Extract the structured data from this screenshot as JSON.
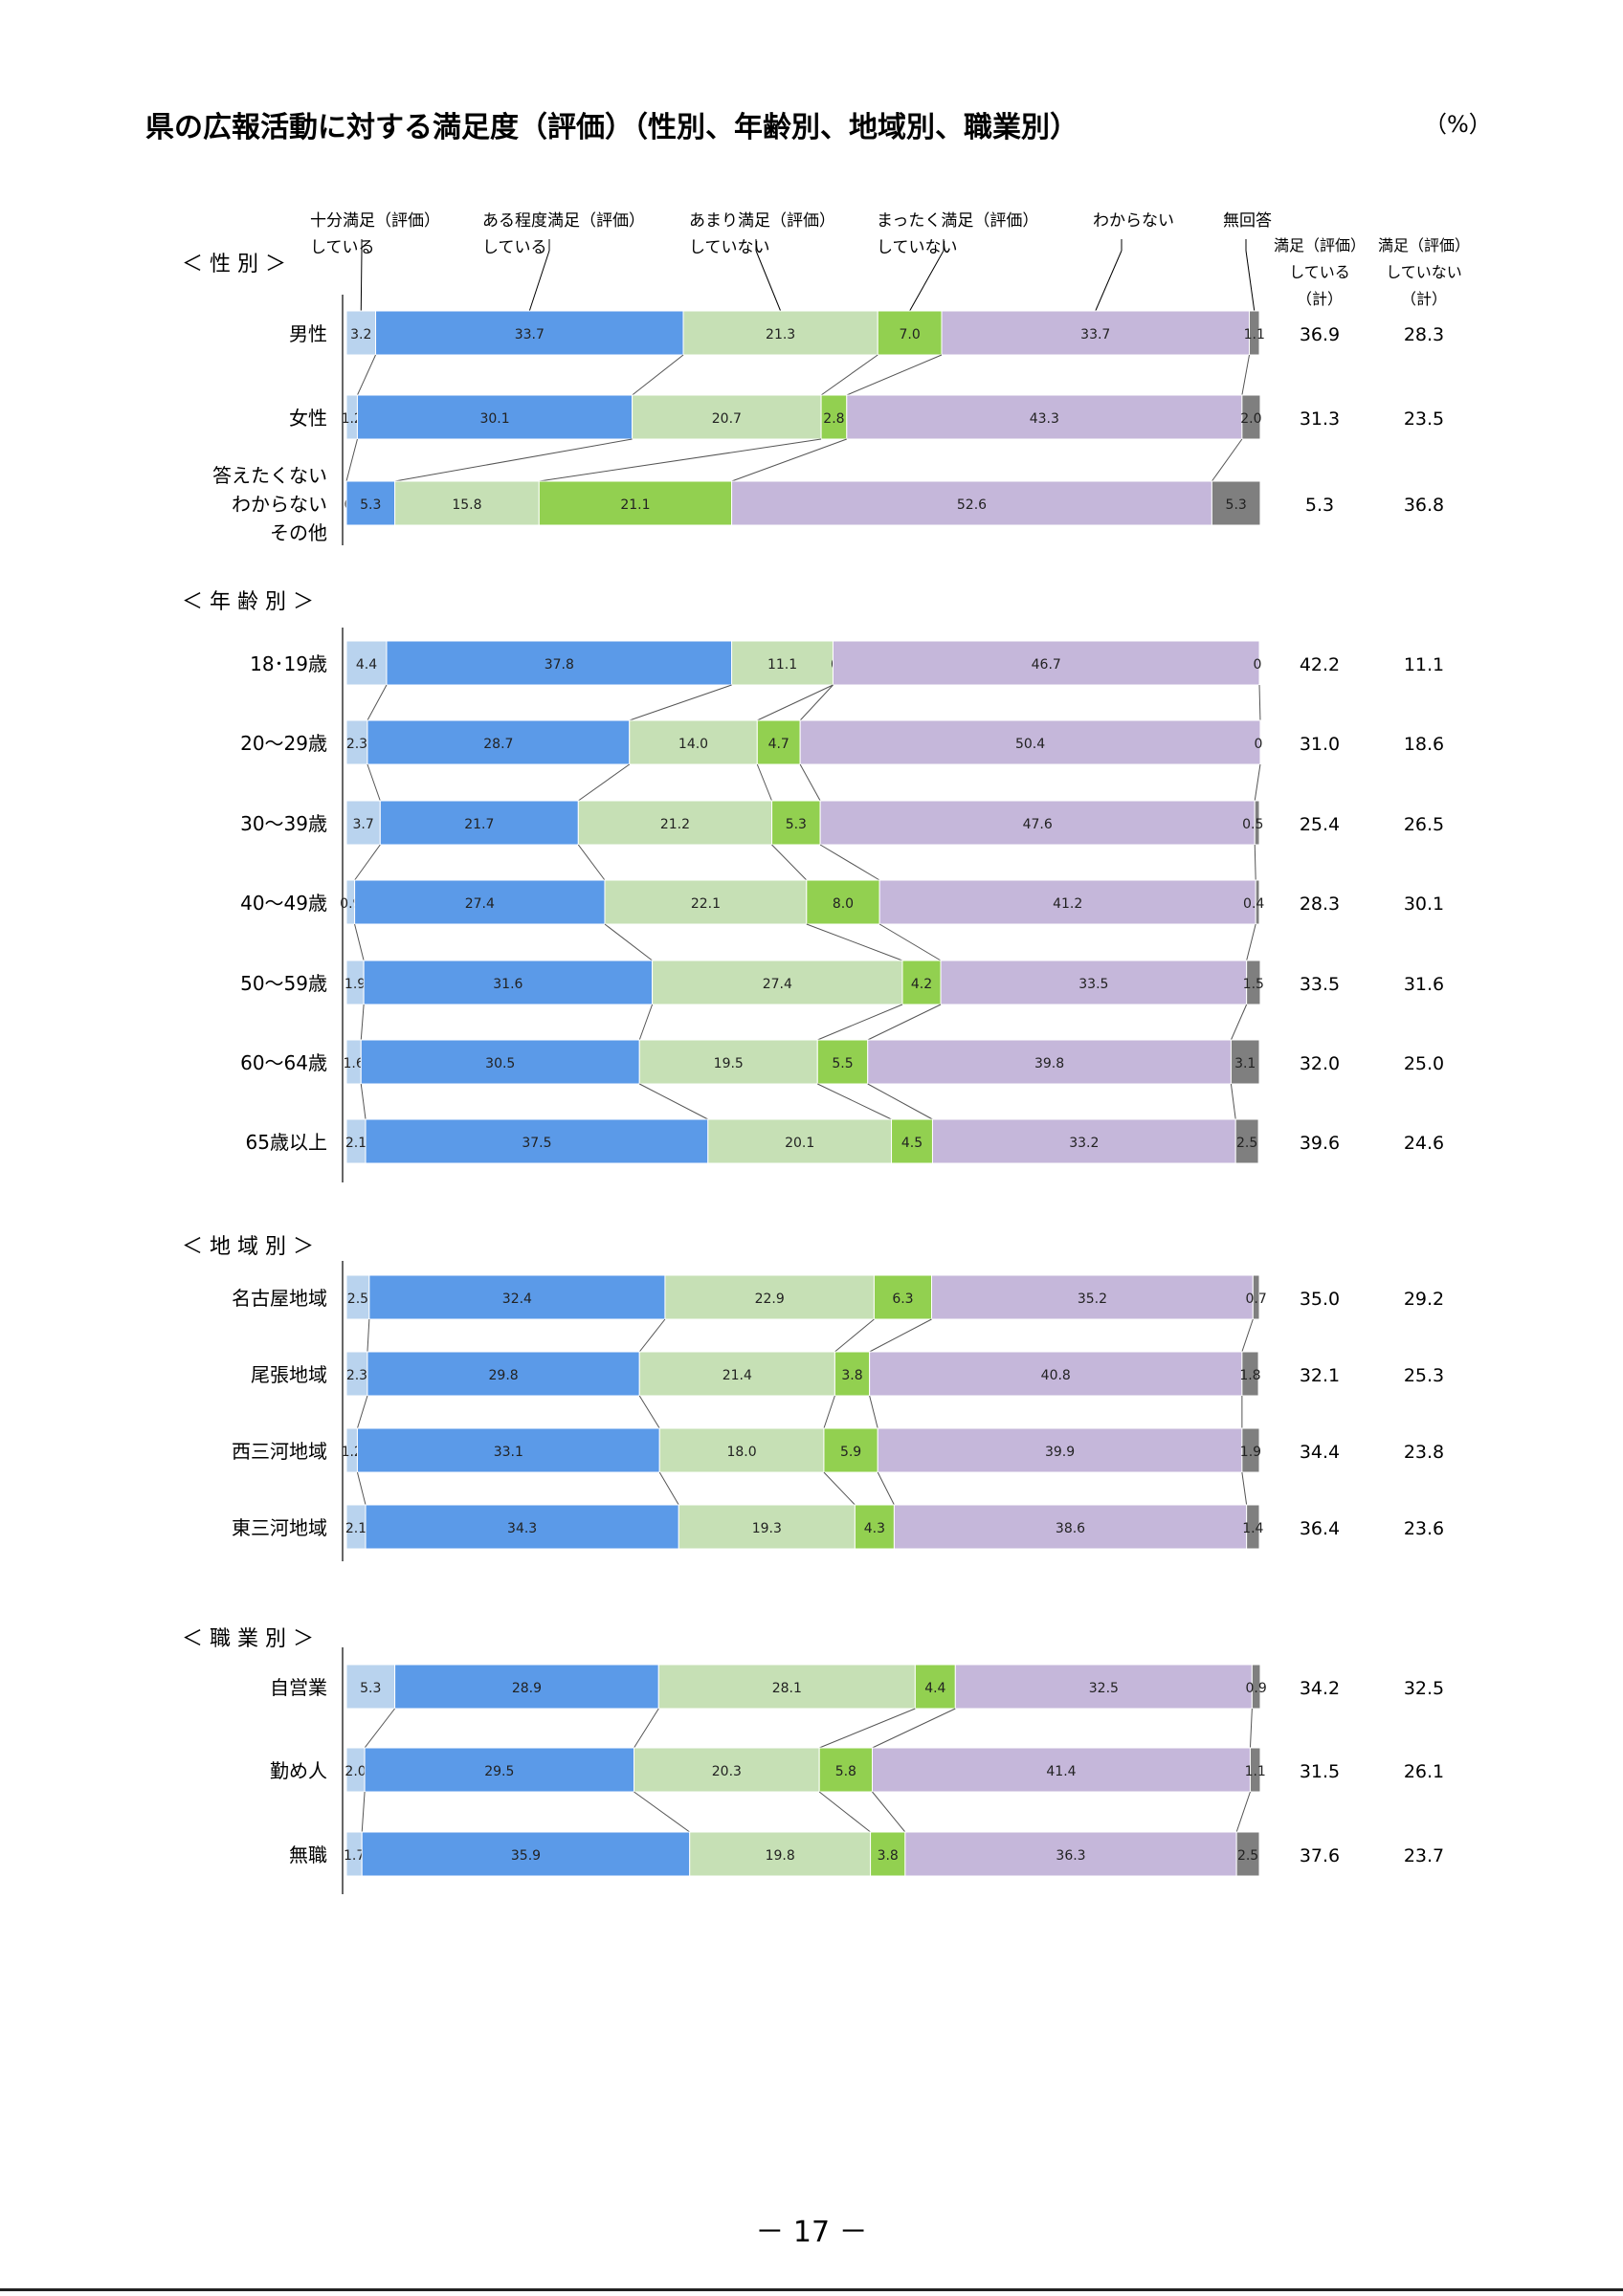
{
  "page": {
    "title": "県の広報活動に対する満足度（評価）（性別、年齢別、地域別、職業別）",
    "unit": "（%）",
    "page_number": "－ 17 －"
  },
  "chart_data": {
    "type": "bar",
    "orientation": "horizontal",
    "stacked": "100%",
    "title": "県の広報活動に対する満足度（評価）（性別、年齢別、地域別、職業別）",
    "legend_position": "top",
    "series": [
      {
        "name": "十分満足（評価）\nしている",
        "color": "#b9d3ee"
      },
      {
        "name": "ある程度満足（評価）\nしている",
        "color": "#5b9ae8"
      },
      {
        "name": "あまり満足（評価）\nしていない",
        "color": "#c6e0b5"
      },
      {
        "name": "まったく満足（評価）\nしていない",
        "color": "#92d050"
      },
      {
        "name": "わからない",
        "color": "#c5b7da"
      },
      {
        "name": "無回答",
        "color": "#7f7f7f"
      }
    ],
    "summary_headers": [
      "満足（評価）\nしている\n（計）",
      "満足（評価）\nしていない\n（計）"
    ],
    "groups": [
      {
        "label": "＜ 性 別 ＞",
        "rows": [
          {
            "category": "男性",
            "values": [
              3.2,
              33.7,
              21.3,
              7.0,
              33.7,
              1.1
            ],
            "labels": [
              "3.2",
              "33.7",
              "21.3",
              "7.0",
              "33.7",
              "1.1"
            ],
            "summary": [
              "36.9",
              "28.3"
            ]
          },
          {
            "category": "女性",
            "values": [
              1.2,
              30.1,
              20.7,
              2.8,
              43.3,
              2.0
            ],
            "labels": [
              "1.2",
              "30.1",
              "20.7",
              "2.8",
              "43.3",
              "2.0"
            ],
            "summary": [
              "31.3",
              "23.5"
            ]
          },
          {
            "category": "答えたくない\nわからない\nその他",
            "values": [
              0,
              5.3,
              15.8,
              21.1,
              52.6,
              5.3
            ],
            "labels": [
              "0",
              "5.3",
              "15.8",
              "21.1",
              "52.6",
              "5.3"
            ],
            "summary": [
              "5.3",
              "36.8"
            ]
          }
        ]
      },
      {
        "label": "＜ 年 齢 別 ＞",
        "rows": [
          {
            "category": "18･19歳",
            "values": [
              4.4,
              37.8,
              11.1,
              0,
              46.7,
              0
            ],
            "labels": [
              "4.4",
              "37.8",
              "11.1",
              "0",
              "46.7",
              "0"
            ],
            "summary": [
              "42.2",
              "11.1"
            ]
          },
          {
            "category": "20～29歳",
            "values": [
              2.3,
              28.7,
              14.0,
              4.7,
              50.4,
              0
            ],
            "labels": [
              "2.3",
              "28.7",
              "14.0",
              "4.7",
              "50.4",
              "0"
            ],
            "summary": [
              "31.0",
              "18.6"
            ]
          },
          {
            "category": "30～39歳",
            "values": [
              3.7,
              21.7,
              21.2,
              5.3,
              47.6,
              0.5
            ],
            "labels": [
              "3.7",
              "21.7",
              "21.2",
              "5.3",
              "47.6",
              "0.5"
            ],
            "summary": [
              "25.4",
              "26.5"
            ]
          },
          {
            "category": "40～49歳",
            "values": [
              0.9,
              27.4,
              22.1,
              8.0,
              41.2,
              0.4
            ],
            "labels": [
              "0.9",
              "27.4",
              "22.1",
              "8.0",
              "41.2",
              "0.4"
            ],
            "summary": [
              "28.3",
              "30.1"
            ]
          },
          {
            "category": "50～59歳",
            "values": [
              1.9,
              31.6,
              27.4,
              4.2,
              33.5,
              1.5
            ],
            "labels": [
              "1.9",
              "31.6",
              "27.4",
              "4.2",
              "33.5",
              "1.5"
            ],
            "summary": [
              "33.5",
              "31.6"
            ]
          },
          {
            "category": "60～64歳",
            "values": [
              1.6,
              30.5,
              19.5,
              5.5,
              39.8,
              3.1
            ],
            "labels": [
              "1.6",
              "30.5",
              "19.5",
              "5.5",
              "39.8",
              "3.1"
            ],
            "summary": [
              "32.0",
              "25.0"
            ]
          },
          {
            "category": "65歳以上",
            "values": [
              2.1,
              37.5,
              20.1,
              4.5,
              33.2,
              2.5
            ],
            "labels": [
              "2.1",
              "37.5",
              "20.1",
              "4.5",
              "33.2",
              "2.5"
            ],
            "summary": [
              "39.6",
              "24.6"
            ]
          }
        ]
      },
      {
        "label": "＜ 地 域 別 ＞",
        "rows": [
          {
            "category": "名古屋地域",
            "values": [
              2.5,
              32.4,
              22.9,
              6.3,
              35.2,
              0.7
            ],
            "labels": [
              "2.5",
              "32.4",
              "22.9",
              "6.3",
              "35.2",
              "0.7"
            ],
            "summary": [
              "35.0",
              "29.2"
            ]
          },
          {
            "category": "尾張地域",
            "values": [
              2.3,
              29.8,
              21.4,
              3.8,
              40.8,
              1.8
            ],
            "labels": [
              "2.3",
              "29.8",
              "21.4",
              "3.8",
              "40.8",
              "1.8"
            ],
            "summary": [
              "32.1",
              "25.3"
            ]
          },
          {
            "category": "西三河地域",
            "values": [
              1.2,
              33.1,
              18.0,
              5.9,
              39.9,
              1.9
            ],
            "labels": [
              "1.2",
              "33.1",
              "18.0",
              "5.9",
              "39.9",
              "1.9"
            ],
            "summary": [
              "34.4",
              "23.8"
            ]
          },
          {
            "category": "東三河地域",
            "values": [
              2.1,
              34.3,
              19.3,
              4.3,
              38.6,
              1.4
            ],
            "labels": [
              "2.1",
              "34.3",
              "19.3",
              "4.3",
              "38.6",
              "1.4"
            ],
            "summary": [
              "36.4",
              "23.6"
            ]
          }
        ]
      },
      {
        "label": "＜ 職 業 別 ＞",
        "rows": [
          {
            "category": "自営業",
            "values": [
              5.3,
              28.9,
              28.1,
              4.4,
              32.5,
              0.9
            ],
            "labels": [
              "5.3",
              "28.9",
              "28.1",
              "4.4",
              "32.5",
              "0.9"
            ],
            "summary": [
              "34.2",
              "32.5"
            ]
          },
          {
            "category": "勤め人",
            "values": [
              2.0,
              29.5,
              20.3,
              5.8,
              41.4,
              1.1
            ],
            "labels": [
              "2.0",
              "29.5",
              "20.3",
              "5.8",
              "41.4",
              "1.1"
            ],
            "summary": [
              "31.5",
              "26.1"
            ]
          },
          {
            "category": "無職",
            "values": [
              1.7,
              35.9,
              19.8,
              3.8,
              36.3,
              2.5
            ],
            "labels": [
              "1.7",
              "35.9",
              "19.8",
              "3.8",
              "36.3",
              "2.5"
            ],
            "summary": [
              "37.6",
              "23.7"
            ]
          }
        ]
      }
    ]
  }
}
